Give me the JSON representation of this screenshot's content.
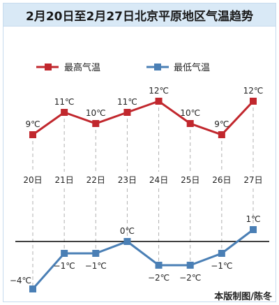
{
  "header": {
    "title": "2月20日至2月27日北京平原地区气温趋势"
  },
  "credit": "本版制图/陈冬",
  "colors": {
    "high": "#c1272d",
    "low": "#4a7fb5",
    "title_bg": "#d9e9f6",
    "zero_line": "#000000",
    "guide": "#b0b0b0"
  },
  "chart_data": {
    "type": "line",
    "title": "2月20日至2月27日北京平原地区气温趋势",
    "categories": [
      "20日",
      "21日",
      "22日",
      "23日",
      "24日",
      "25日",
      "26日",
      "27日"
    ],
    "series": [
      {
        "name": "最高气温",
        "values": [
          9,
          11,
          10,
          11,
          12,
          10,
          9,
          12
        ],
        "labels": [
          "9℃",
          "11℃",
          "10℃",
          "11℃",
          "12℃",
          "10℃",
          "9℃",
          "12℃"
        ]
      },
      {
        "name": "最低气温",
        "values": [
          -4,
          -1,
          -1,
          0,
          -2,
          -2,
          -1,
          1
        ],
        "labels": [
          "−4℃",
          "−1℃",
          "−1℃",
          "0℃",
          "−2℃",
          "−2℃",
          "−1℃",
          "1℃"
        ]
      }
    ],
    "legend": "top-left",
    "zero_line": true,
    "grid": false
  }
}
